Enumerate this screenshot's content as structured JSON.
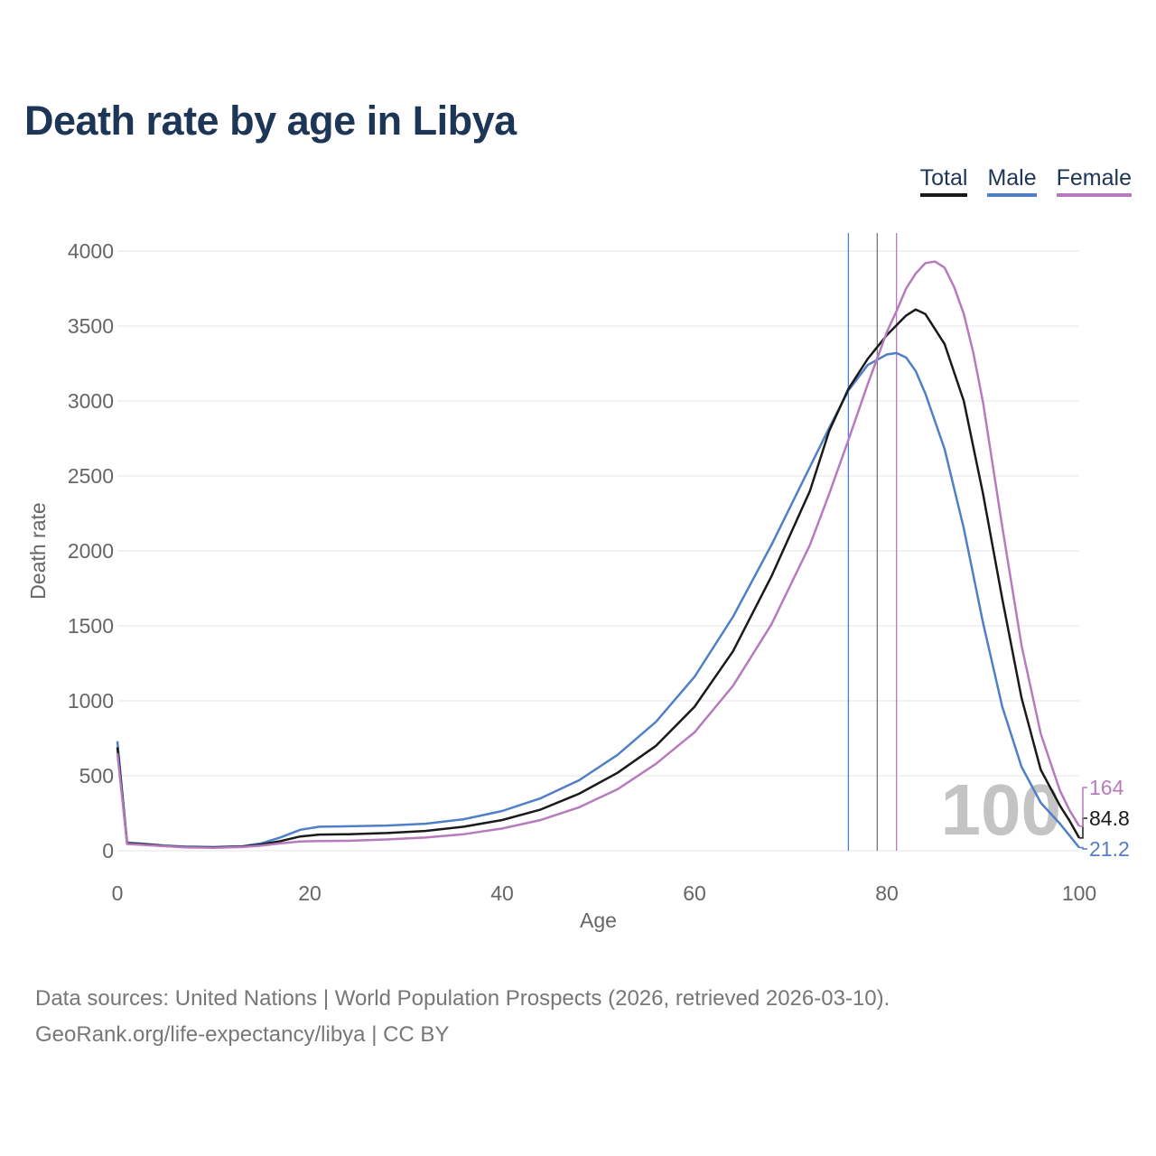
{
  "title": "Death rate by age in Libya",
  "legend": [
    {
      "label": "Total",
      "color": "#1a1a1a"
    },
    {
      "label": "Male",
      "color": "#4f7fc6"
    },
    {
      "label": "Female",
      "color": "#b77bbd"
    }
  ],
  "chart_data": {
    "type": "line",
    "title": "Death rate by age in Libya",
    "xlabel": "Age",
    "ylabel": "Death rate",
    "xlim": [
      0,
      100
    ],
    "ylim": [
      0,
      4000
    ],
    "x_ticks": [
      0,
      20,
      40,
      60,
      80,
      100
    ],
    "y_ticks": [
      0,
      500,
      1000,
      1500,
      2000,
      2500,
      3000,
      3500,
      4000
    ],
    "grid": true,
    "series": [
      {
        "name": "Total",
        "color": "#1a1a1a",
        "points": [
          [
            0,
            690
          ],
          [
            1,
            50
          ],
          [
            3,
            42
          ],
          [
            5,
            32
          ],
          [
            7,
            25
          ],
          [
            10,
            23
          ],
          [
            13,
            28
          ],
          [
            15,
            42
          ],
          [
            17,
            65
          ],
          [
            19,
            95
          ],
          [
            21,
            108
          ],
          [
            24,
            110
          ],
          [
            28,
            118
          ],
          [
            32,
            132
          ],
          [
            36,
            160
          ],
          [
            40,
            205
          ],
          [
            44,
            275
          ],
          [
            48,
            380
          ],
          [
            52,
            520
          ],
          [
            56,
            700
          ],
          [
            60,
            960
          ],
          [
            64,
            1330
          ],
          [
            68,
            1830
          ],
          [
            72,
            2400
          ],
          [
            74,
            2800
          ],
          [
            76,
            3080
          ],
          [
            78,
            3280
          ],
          [
            80,
            3440
          ],
          [
            82,
            3570
          ],
          [
            83,
            3610
          ],
          [
            84,
            3580
          ],
          [
            86,
            3380
          ],
          [
            88,
            3000
          ],
          [
            90,
            2380
          ],
          [
            92,
            1680
          ],
          [
            94,
            1020
          ],
          [
            96,
            540
          ],
          [
            98,
            300
          ],
          [
            99,
            200
          ],
          [
            100,
            84.8
          ]
        ],
        "end_label": "84.8"
      },
      {
        "name": "Male",
        "color": "#4f7fc6",
        "points": [
          [
            0,
            730
          ],
          [
            1,
            55
          ],
          [
            3,
            45
          ],
          [
            5,
            35
          ],
          [
            7,
            28
          ],
          [
            10,
            25
          ],
          [
            13,
            30
          ],
          [
            15,
            50
          ],
          [
            17,
            90
          ],
          [
            19,
            140
          ],
          [
            21,
            160
          ],
          [
            24,
            163
          ],
          [
            28,
            168
          ],
          [
            32,
            180
          ],
          [
            36,
            210
          ],
          [
            40,
            265
          ],
          [
            44,
            350
          ],
          [
            48,
            470
          ],
          [
            52,
            640
          ],
          [
            56,
            860
          ],
          [
            60,
            1160
          ],
          [
            64,
            1560
          ],
          [
            68,
            2040
          ],
          [
            72,
            2560
          ],
          [
            74,
            2820
          ],
          [
            76,
            3070
          ],
          [
            78,
            3240
          ],
          [
            80,
            3310
          ],
          [
            81,
            3320
          ],
          [
            82,
            3290
          ],
          [
            83,
            3200
          ],
          [
            84,
            3050
          ],
          [
            86,
            2680
          ],
          [
            88,
            2150
          ],
          [
            90,
            1520
          ],
          [
            92,
            960
          ],
          [
            94,
            560
          ],
          [
            96,
            320
          ],
          [
            98,
            180
          ],
          [
            100,
            21.2
          ]
        ],
        "end_label": "21.2"
      },
      {
        "name": "Female",
        "color": "#b77bbd",
        "points": [
          [
            0,
            650
          ],
          [
            1,
            45
          ],
          [
            3,
            38
          ],
          [
            5,
            30
          ],
          [
            7,
            23
          ],
          [
            10,
            20
          ],
          [
            13,
            25
          ],
          [
            15,
            35
          ],
          [
            17,
            50
          ],
          [
            19,
            62
          ],
          [
            21,
            65
          ],
          [
            24,
            66
          ],
          [
            28,
            75
          ],
          [
            32,
            88
          ],
          [
            36,
            110
          ],
          [
            40,
            148
          ],
          [
            44,
            205
          ],
          [
            48,
            290
          ],
          [
            52,
            410
          ],
          [
            56,
            580
          ],
          [
            60,
            790
          ],
          [
            64,
            1100
          ],
          [
            68,
            1510
          ],
          [
            72,
            2040
          ],
          [
            74,
            2380
          ],
          [
            76,
            2740
          ],
          [
            78,
            3110
          ],
          [
            80,
            3460
          ],
          [
            81,
            3600
          ],
          [
            82,
            3750
          ],
          [
            83,
            3850
          ],
          [
            84,
            3920
          ],
          [
            85,
            3930
          ],
          [
            86,
            3890
          ],
          [
            87,
            3760
          ],
          [
            88,
            3580
          ],
          [
            89,
            3320
          ],
          [
            90,
            2990
          ],
          [
            92,
            2160
          ],
          [
            94,
            1370
          ],
          [
            96,
            780
          ],
          [
            98,
            400
          ],
          [
            99,
            270
          ],
          [
            100,
            164
          ]
        ],
        "end_label": "164"
      }
    ],
    "reference_lines": [
      {
        "name": "Male",
        "x": 76,
        "color": "#4f7fc6"
      },
      {
        "name": "Total",
        "x": 79,
        "color": "#777777"
      },
      {
        "name": "Female",
        "x": 81,
        "color": "#b77bbd"
      }
    ],
    "watermark": "100"
  },
  "footer": {
    "line1": "Data sources: United Nations | World Population Prospects (2026, retrieved 2026-03-10).",
    "line2": "GeoRank.org/life-expectancy/libya | CC BY"
  }
}
